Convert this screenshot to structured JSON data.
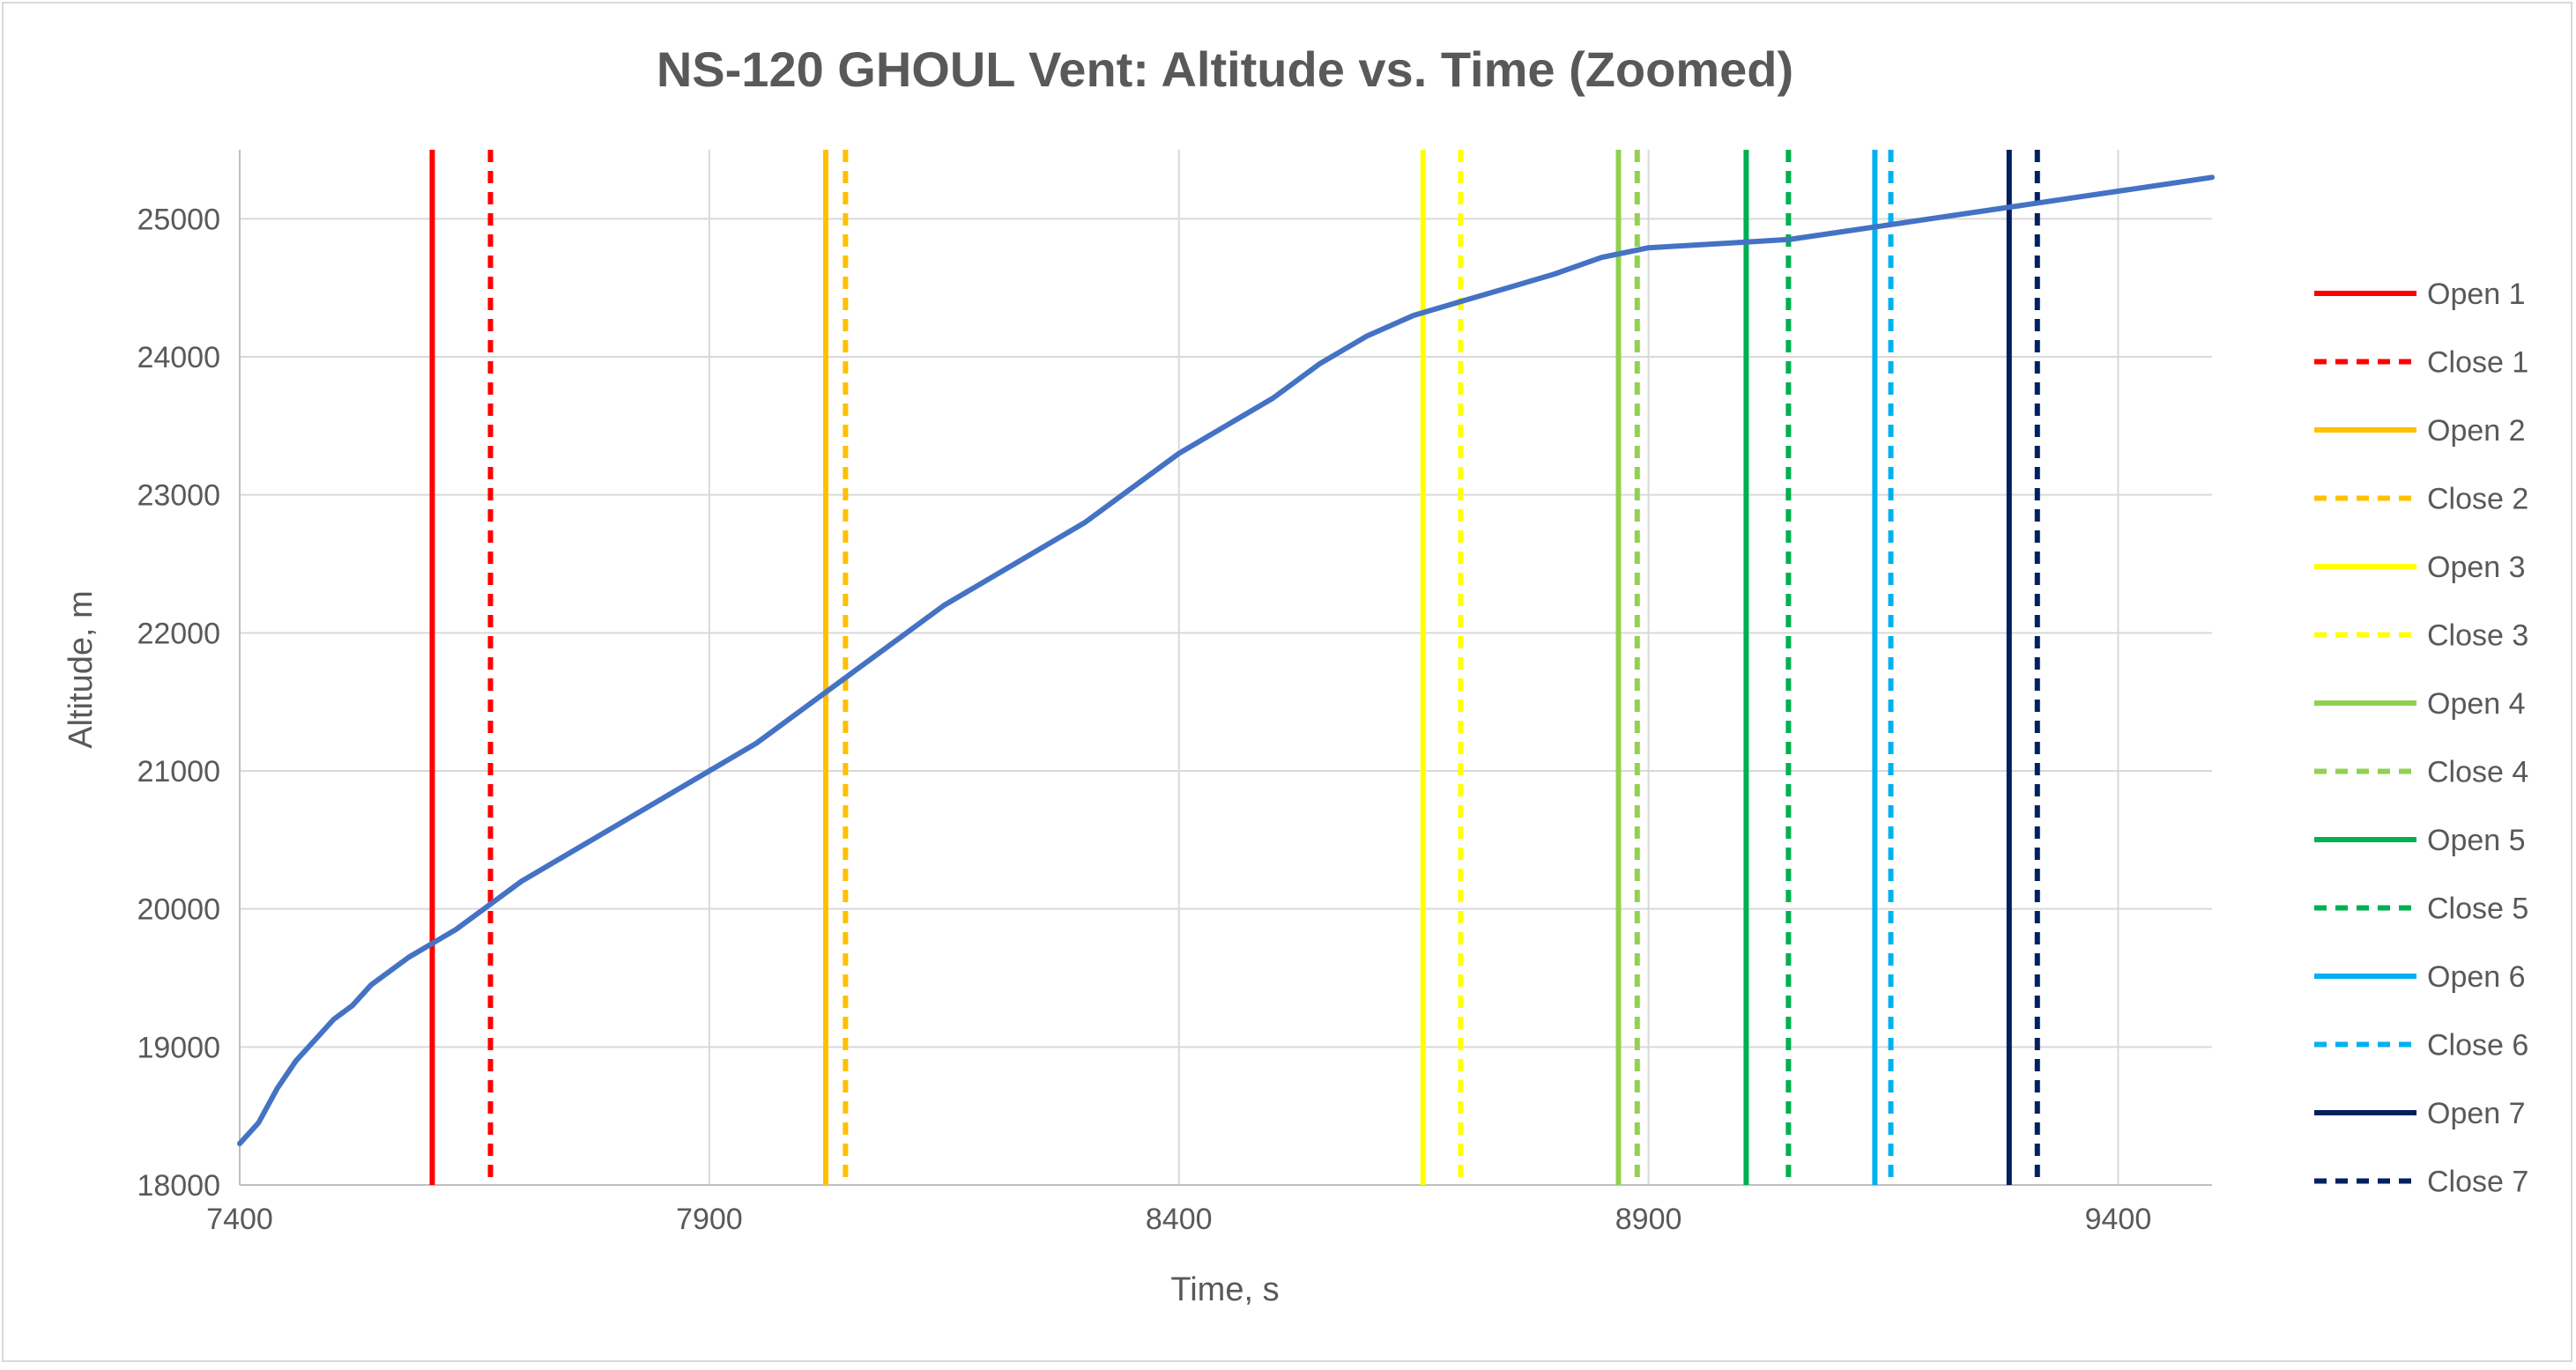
{
  "chart_data": {
    "type": "line",
    "title": "NS-120 GHOUL Vent: Altitude vs. Time (Zoomed)",
    "xlabel": "Time, s",
    "ylabel": "Altitude, m",
    "xlim": [
      7400,
      9500
    ],
    "ylim": [
      18000,
      25500
    ],
    "xticks": [
      7400,
      7900,
      8400,
      8900,
      9400
    ],
    "yticks": [
      18000,
      19000,
      20000,
      21000,
      22000,
      23000,
      24000,
      25000
    ],
    "grid": "vertical and horizontal major gridlines",
    "legend_position": "right",
    "altitude_series": {
      "color": "#4472C4",
      "x": [
        7400,
        7420,
        7440,
        7460,
        7480,
        7500,
        7520,
        7540,
        7560,
        7580,
        7605,
        7630,
        7660,
        7700,
        7750,
        7800,
        7850,
        7900,
        7950,
        8000,
        8050,
        8100,
        8150,
        8200,
        8250,
        8300,
        8350,
        8400,
        8450,
        8500,
        8550,
        8600,
        8650,
        8700,
        8750,
        8800,
        8850,
        8900,
        8950,
        9000,
        9050,
        9100,
        9150,
        9200,
        9250,
        9300,
        9350,
        9400,
        9450,
        9500
      ],
      "y": [
        18300,
        18450,
        18700,
        18900,
        19050,
        19200,
        19300,
        19450,
        19550,
        19650,
        19750,
        19850,
        20000,
        20200,
        20400,
        20600,
        20800,
        21000,
        21200,
        21450,
        21700,
        21950,
        22200,
        22400,
        22600,
        22800,
        23050,
        23300,
        23500,
        23700,
        23950,
        24150,
        24300,
        24400,
        24500,
        24600,
        24720,
        24790,
        24810,
        24830,
        24850,
        24900,
        24950,
        25000,
        25050,
        25100,
        25150,
        25200,
        25250,
        25300
      ]
    },
    "vent_events": [
      {
        "label": "Open 1",
        "time": 7605,
        "color": "#FF0000",
        "style": "solid"
      },
      {
        "label": "Close 1",
        "time": 7667,
        "color": "#FF0000",
        "style": "dashed"
      },
      {
        "label": "Open 2",
        "time": 8024,
        "color": "#FFC000",
        "style": "solid"
      },
      {
        "label": "Close 2",
        "time": 8045,
        "color": "#FFC000",
        "style": "dashed"
      },
      {
        "label": "Open 3",
        "time": 8660,
        "color": "#FFFF00",
        "style": "solid"
      },
      {
        "label": "Close 3",
        "time": 8700,
        "color": "#FFFF00",
        "style": "dashed"
      },
      {
        "label": "Open 4",
        "time": 8868,
        "color": "#92D050",
        "style": "solid"
      },
      {
        "label": "Close 4",
        "time": 8888,
        "color": "#92D050",
        "style": "dashed"
      },
      {
        "label": "Open 5",
        "time": 9004,
        "color": "#00B050",
        "style": "solid"
      },
      {
        "label": "Close 5",
        "time": 9049,
        "color": "#00B050",
        "style": "dashed"
      },
      {
        "label": "Open 6",
        "time": 9141,
        "color": "#00B0F0",
        "style": "solid"
      },
      {
        "label": "Close 6",
        "time": 9158,
        "color": "#00B0F0",
        "style": "dashed"
      },
      {
        "label": "Open 7",
        "time": 9284,
        "color": "#002060",
        "style": "solid"
      },
      {
        "label": "Close 7",
        "time": 9314,
        "color": "#002060",
        "style": "dashed"
      }
    ]
  }
}
